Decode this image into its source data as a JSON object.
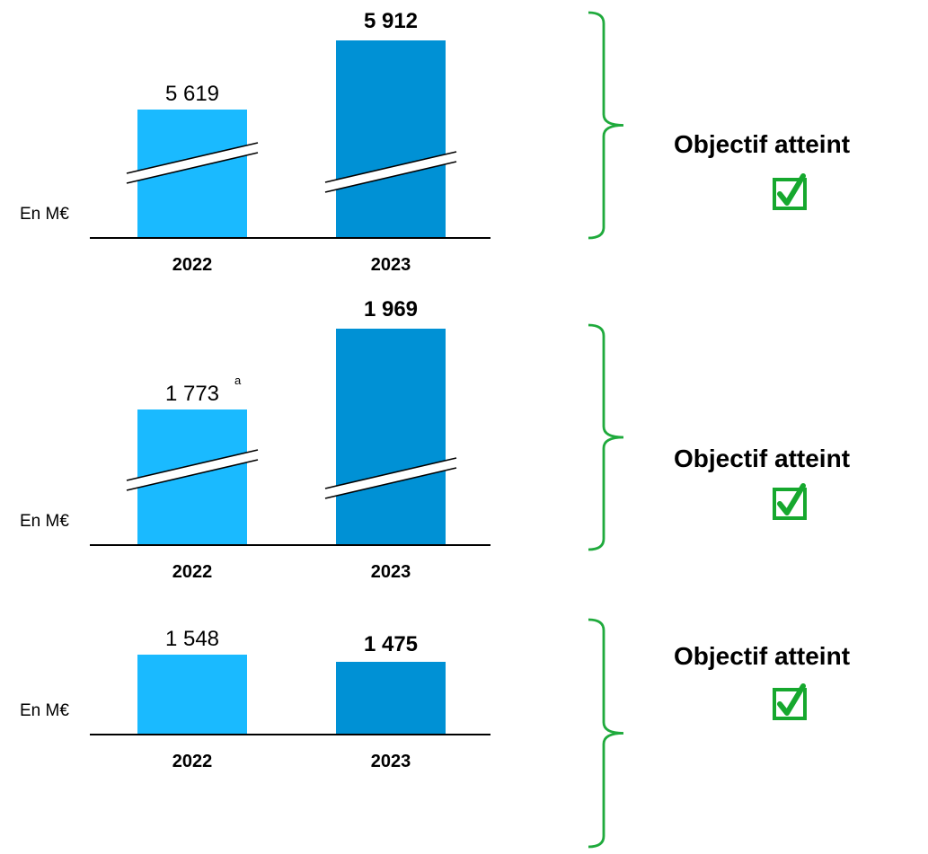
{
  "colors": {
    "bar_2022": "#1ABAFF",
    "bar_2023": "#0091D5",
    "axis": "#000000",
    "bracket": "#1FAA3C",
    "check": "#16A82E",
    "text": "#000000"
  },
  "chart_data": [
    {
      "type": "bar",
      "categories": [
        "2022",
        "2023"
      ],
      "values": [
        5619,
        5912
      ],
      "value_labels": [
        "5 619",
        "5 912"
      ],
      "value_superscripts": [
        "",
        ""
      ],
      "unit_label": "En M€",
      "axis_break": true,
      "status_text": "Objectif atteint",
      "status_icon": "checked-checkbox-icon"
    },
    {
      "type": "bar",
      "categories": [
        "2022",
        "2023"
      ],
      "values": [
        1773,
        1969
      ],
      "value_labels": [
        "1 773",
        "1 969"
      ],
      "value_superscripts": [
        "a",
        ""
      ],
      "unit_label": "En M€",
      "axis_break": true,
      "status_text": "Objectif atteint",
      "status_icon": "checked-checkbox-icon"
    },
    {
      "type": "bar",
      "categories": [
        "2022",
        "2023"
      ],
      "values": [
        1548,
        1475
      ],
      "value_labels": [
        "1 548",
        "1 475"
      ],
      "value_superscripts": [
        "",
        ""
      ],
      "unit_label": "En M€",
      "axis_break": false,
      "status_text": "Objectif atteint",
      "status_icon": "checked-checkbox-icon"
    }
  ]
}
